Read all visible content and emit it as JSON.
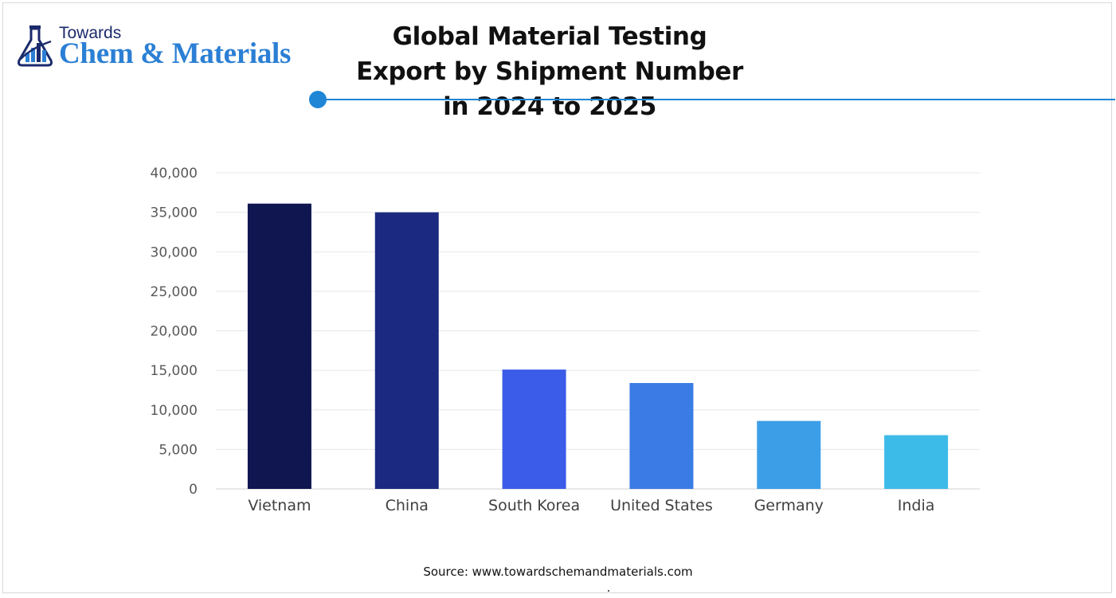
{
  "brand": {
    "top_line": "Towards",
    "main_line": "Chem & Materials",
    "icon": "flask-chart-icon",
    "color_dark": "#1b2a6b",
    "color_accent": "#2b7fd4"
  },
  "accent_color": "#1f86d6",
  "source_text": "Source: www.towardschemandmaterials.com",
  "chart_data": {
    "type": "bar",
    "title": "Global Material Testing Export by Shipment Number in 2024 to 2025",
    "xlabel": "",
    "ylabel": "",
    "categories": [
      "Vietnam",
      "China",
      "South Korea",
      "United States",
      "Germany",
      "India"
    ],
    "values": [
      36100,
      35000,
      15100,
      13400,
      8600,
      6800
    ],
    "colors": [
      "#0f1650",
      "#1b2a80",
      "#3b5ce8",
      "#3a7be6",
      "#3d9ee8",
      "#3dbbe8"
    ],
    "ylim": [
      0,
      40000
    ],
    "yticks": [
      "0",
      "5,000",
      "10,000",
      "15,000",
      "20,000",
      "25,000",
      "30,000",
      "35,000",
      "40,000"
    ],
    "grid": true,
    "legend": "none"
  }
}
